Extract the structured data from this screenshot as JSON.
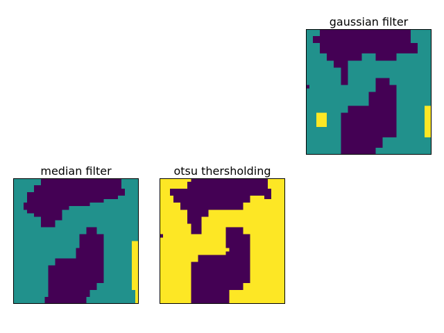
{
  "figure": {
    "colors": {
      "low": "#440154",
      "mid": "#21918c",
      "high": "#fde725"
    },
    "panels": [
      {
        "title": "gaussian filter",
        "regions": [
          {
            "level": "mid",
            "pts": [
              [
                0,
                0
              ],
              [
                36,
                0
              ],
              [
                36,
                36
              ],
              [
                0,
                36
              ]
            ]
          },
          {
            "level": "low",
            "pts": [
              [
                4,
                0
              ],
              [
                30,
                0
              ],
              [
                30,
                4
              ],
              [
                32,
                4
              ],
              [
                32,
                7
              ],
              [
                26,
                7
              ],
              [
                26,
                9
              ],
              [
                20,
                9
              ],
              [
                20,
                7
              ],
              [
                16,
                7
              ],
              [
                16,
                9
              ],
              [
                12,
                9
              ],
              [
                12,
                16
              ],
              [
                10,
                16
              ],
              [
                10,
                11
              ],
              [
                8,
                11
              ],
              [
                8,
                9
              ],
              [
                6,
                9
              ],
              [
                6,
                7
              ],
              [
                4,
                7
              ],
              [
                4,
                4
              ],
              [
                2,
                4
              ],
              [
                2,
                2
              ],
              [
                4,
                2
              ]
            ]
          },
          {
            "level": "low",
            "pts": [
              [
                20,
                14
              ],
              [
                24,
                14
              ],
              [
                24,
                16
              ],
              [
                26,
                16
              ],
              [
                26,
                31
              ],
              [
                22,
                31
              ],
              [
                22,
                34
              ],
              [
                20,
                34
              ],
              [
                20,
                36
              ],
              [
                10,
                36
              ],
              [
                10,
                24
              ],
              [
                12,
                24
              ],
              [
                12,
                22
              ],
              [
                18,
                22
              ],
              [
                18,
                18
              ],
              [
                20,
                18
              ]
            ]
          },
          {
            "level": "low",
            "pts": [
              [
                0,
                16
              ],
              [
                1,
                16
              ],
              [
                1,
                17
              ],
              [
                0,
                17
              ]
            ]
          },
          {
            "level": "high",
            "pts": [
              [
                3,
                24
              ],
              [
                6,
                24
              ],
              [
                6,
                28
              ],
              [
                3,
                28
              ]
            ]
          },
          {
            "level": "high",
            "pts": [
              [
                34,
                22
              ],
              [
                36,
                22
              ],
              [
                36,
                31
              ],
              [
                34,
                31
              ]
            ]
          }
        ]
      },
      {
        "title": "median filter",
        "regions": [
          {
            "level": "mid",
            "pts": [
              [
                0,
                0
              ],
              [
                36,
                0
              ],
              [
                36,
                36
              ],
              [
                0,
                36
              ]
            ]
          },
          {
            "level": "low",
            "pts": [
              [
                8,
                0
              ],
              [
                31,
                0
              ],
              [
                31,
                3
              ],
              [
                32,
                3
              ],
              [
                32,
                5
              ],
              [
                30,
                5
              ],
              [
                30,
                6
              ],
              [
                26,
                6
              ],
              [
                26,
                7
              ],
              [
                22,
                7
              ],
              [
                22,
                8
              ],
              [
                16,
                8
              ],
              [
                16,
                9
              ],
              [
                14,
                9
              ],
              [
                14,
                12
              ],
              [
                12,
                12
              ],
              [
                12,
                14
              ],
              [
                8,
                14
              ],
              [
                8,
                11
              ],
              [
                6,
                11
              ],
              [
                6,
                10
              ],
              [
                4,
                10
              ],
              [
                4,
                9
              ],
              [
                3,
                9
              ],
              [
                3,
                7
              ],
              [
                4,
                7
              ],
              [
                4,
                4
              ],
              [
                6,
                4
              ],
              [
                6,
                2
              ],
              [
                8,
                2
              ]
            ]
          },
          {
            "level": "low",
            "pts": [
              [
                22,
                14
              ],
              [
                24,
                14
              ],
              [
                24,
                16
              ],
              [
                26,
                16
              ],
              [
                26,
                30
              ],
              [
                24,
                30
              ],
              [
                24,
                32
              ],
              [
                22,
                32
              ],
              [
                22,
                34
              ],
              [
                21,
                34
              ],
              [
                21,
                36
              ],
              [
                9,
                36
              ],
              [
                9,
                34
              ],
              [
                10,
                34
              ],
              [
                10,
                25
              ],
              [
                12,
                25
              ],
              [
                12,
                23
              ],
              [
                18,
                23
              ],
              [
                18,
                20
              ],
              [
                19,
                20
              ],
              [
                19,
                16
              ],
              [
                21,
                16
              ],
              [
                21,
                14
              ]
            ]
          },
          {
            "level": "high",
            "pts": [
              [
                34,
                18
              ],
              [
                36,
                18
              ],
              [
                36,
                36
              ],
              [
                35,
                36
              ],
              [
                35,
                32
              ],
              [
                34,
                32
              ]
            ]
          }
        ]
      },
      {
        "title": "otsu thersholding",
        "regions": [
          {
            "level": "high",
            "pts": [
              [
                0,
                0
              ],
              [
                36,
                0
              ],
              [
                36,
                36
              ],
              [
                0,
                36
              ]
            ]
          },
          {
            "level": "low",
            "pts": [
              [
                9,
                0
              ],
              [
                31,
                0
              ],
              [
                31,
                3
              ],
              [
                32,
                3
              ],
              [
                32,
                6
              ],
              [
                30,
                6
              ],
              [
                30,
                5
              ],
              [
                26,
                5
              ],
              [
                26,
                7
              ],
              [
                24,
                7
              ],
              [
                24,
                9
              ],
              [
                14,
                9
              ],
              [
                14,
                11
              ],
              [
                12,
                11
              ],
              [
                12,
                16
              ],
              [
                9,
                16
              ],
              [
                9,
                13
              ],
              [
                8,
                13
              ],
              [
                8,
                9
              ],
              [
                6,
                9
              ],
              [
                6,
                7
              ],
              [
                4,
                7
              ],
              [
                4,
                5
              ],
              [
                3,
                5
              ],
              [
                3,
                3
              ],
              [
                8,
                3
              ],
              [
                8,
                1
              ],
              [
                9,
                1
              ]
            ]
          },
          {
            "level": "low",
            "pts": [
              [
                19,
                14
              ],
              [
                24,
                14
              ],
              [
                24,
                16
              ],
              [
                26,
                16
              ],
              [
                26,
                30
              ],
              [
                24,
                30
              ],
              [
                24,
                32
              ],
              [
                20,
                32
              ],
              [
                20,
                34
              ],
              [
                20,
                36
              ],
              [
                9,
                36
              ],
              [
                9,
                24
              ],
              [
                11,
                24
              ],
              [
                11,
                22
              ],
              [
                19,
                22
              ],
              [
                19,
                21
              ],
              [
                20,
                21
              ],
              [
                20,
                20
              ],
              [
                19,
                20
              ],
              [
                19,
                16
              ],
              [
                19,
                14
              ]
            ]
          },
          {
            "level": "low",
            "pts": [
              [
                0,
                16
              ],
              [
                1,
                16
              ],
              [
                1,
                17
              ],
              [
                0,
                17
              ]
            ]
          }
        ]
      }
    ]
  }
}
